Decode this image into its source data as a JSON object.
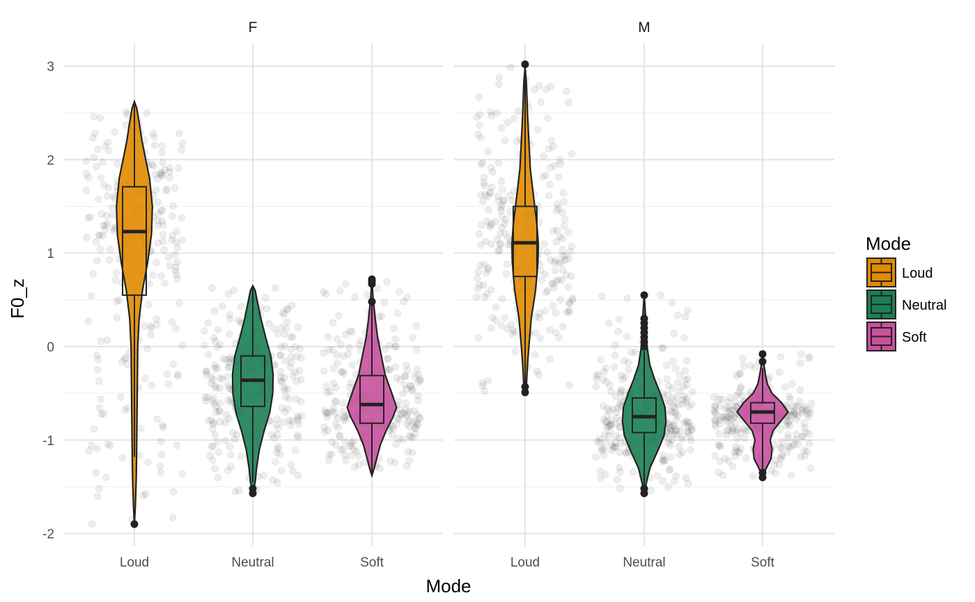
{
  "chart_data": {
    "type": "violin",
    "facets": [
      "F",
      "M"
    ],
    "categories": [
      "Loud",
      "Neutral",
      "Soft"
    ],
    "xlabel": "Mode",
    "ylabel": "F0_z",
    "ylim": [
      -2.2,
      3.25
    ],
    "y_ticks": [
      -2,
      -1,
      0,
      1,
      2,
      3
    ],
    "y_tick_labels": [
      "-2",
      "-1",
      "0",
      "1",
      "2",
      "3"
    ],
    "grid": true,
    "legend": {
      "title": "Mode",
      "position": "right",
      "items": [
        {
          "label": "Loud",
          "color": "#E08B00"
        },
        {
          "label": "Neutral",
          "color": "#1B7F55"
        },
        {
          "label": "Soft",
          "color": "#C8519E"
        }
      ]
    },
    "panels": [
      {
        "facet": "F",
        "groups": [
          {
            "category": "Loud",
            "color": "#E08B00",
            "min": -1.9,
            "max": 2.62,
            "q1": 0.55,
            "median": 1.23,
            "q3": 1.71,
            "whisker_low": -1.18,
            "whisker_high": 2.62,
            "outliers": [
              -1.9
            ],
            "density": [
              [
                -1.9,
                0.0
              ],
              [
                -1.7,
                0.02
              ],
              [
                -1.4,
                0.04
              ],
              [
                -1.0,
                0.05
              ],
              [
                -0.5,
                0.06
              ],
              [
                0.0,
                0.07
              ],
              [
                0.3,
                0.1
              ],
              [
                0.6,
                0.17
              ],
              [
                0.9,
                0.28
              ],
              [
                1.2,
                0.36
              ],
              [
                1.5,
                0.38
              ],
              [
                1.8,
                0.32
              ],
              [
                2.0,
                0.24
              ],
              [
                2.2,
                0.16
              ],
              [
                2.4,
                0.1
              ],
              [
                2.55,
                0.05
              ],
              [
                2.62,
                0.0
              ]
            ]
          },
          {
            "category": "Neutral",
            "color": "#1B7F55",
            "min": -1.57,
            "max": 0.65,
            "q1": -0.64,
            "median": -0.36,
            "q3": -0.1,
            "whisker_low": -1.45,
            "whisker_high": 0.65,
            "outliers": [
              -1.57,
              -1.52
            ],
            "density": [
              [
                -1.57,
                0.0
              ],
              [
                -1.45,
                0.05
              ],
              [
                -1.3,
                0.08
              ],
              [
                -1.1,
                0.14
              ],
              [
                -0.9,
                0.24
              ],
              [
                -0.7,
                0.36
              ],
              [
                -0.5,
                0.42
              ],
              [
                -0.3,
                0.43
              ],
              [
                -0.1,
                0.38
              ],
              [
                0.1,
                0.27
              ],
              [
                0.3,
                0.17
              ],
              [
                0.5,
                0.09
              ],
              [
                0.6,
                0.05
              ],
              [
                0.65,
                0.0
              ]
            ]
          },
          {
            "category": "Soft",
            "color": "#C8519E",
            "min": -1.38,
            "max": 0.73,
            "q1": -0.82,
            "median": -0.62,
            "q3": -0.31,
            "whisker_low": -1.38,
            "whisker_high": 0.45,
            "outliers": [
              0.48,
              0.67,
              0.7,
              0.72
            ],
            "density": [
              [
                -1.38,
                0.0
              ],
              [
                -1.3,
                0.05
              ],
              [
                -1.2,
                0.1
              ],
              [
                -1.05,
                0.18
              ],
              [
                -0.9,
                0.3
              ],
              [
                -0.75,
                0.45
              ],
              [
                -0.65,
                0.52
              ],
              [
                -0.5,
                0.42
              ],
              [
                -0.3,
                0.28
              ],
              [
                -0.1,
                0.2
              ],
              [
                0.1,
                0.12
              ],
              [
                0.3,
                0.07
              ],
              [
                0.45,
                0.04
              ],
              [
                0.55,
                0.02
              ],
              [
                0.73,
                0.0
              ]
            ]
          }
        ]
      },
      {
        "facet": "M",
        "groups": [
          {
            "category": "Loud",
            "color": "#E08B00",
            "min": -0.49,
            "max": 3.02,
            "q1": 0.75,
            "median": 1.11,
            "q3": 1.5,
            "whisker_low": -0.4,
            "whisker_high": 2.9,
            "outliers": [
              -0.49,
              -0.43,
              3.02
            ],
            "density": [
              [
                -0.49,
                0.0
              ],
              [
                -0.4,
                0.03
              ],
              [
                -0.2,
                0.05
              ],
              [
                0.0,
                0.08
              ],
              [
                0.3,
                0.13
              ],
              [
                0.6,
                0.22
              ],
              [
                0.9,
                0.27
              ],
              [
                1.1,
                0.28
              ],
              [
                1.3,
                0.25
              ],
              [
                1.6,
                0.18
              ],
              [
                1.9,
                0.11
              ],
              [
                2.2,
                0.08
              ],
              [
                2.5,
                0.05
              ],
              [
                2.8,
                0.03
              ],
              [
                3.0,
                0.0
              ]
            ]
          },
          {
            "category": "Neutral",
            "color": "#1B7F55",
            "min": -1.57,
            "max": 0.56,
            "q1": -0.92,
            "median": -0.75,
            "q3": -0.55,
            "whisker_low": -1.5,
            "whisker_high": -0.05,
            "outliers": [
              -1.57,
              -1.52,
              0.0,
              0.05,
              0.1,
              0.15,
              0.2,
              0.25,
              0.3,
              0.55
            ],
            "density": [
              [
                -1.57,
                0.0
              ],
              [
                -1.45,
                0.05
              ],
              [
                -1.3,
                0.12
              ],
              [
                -1.1,
                0.3
              ],
              [
                -0.95,
                0.42
              ],
              [
                -0.8,
                0.46
              ],
              [
                -0.65,
                0.44
              ],
              [
                -0.5,
                0.34
              ],
              [
                -0.35,
                0.22
              ],
              [
                -0.2,
                0.12
              ],
              [
                0.0,
                0.06
              ],
              [
                0.2,
                0.04
              ],
              [
                0.4,
                0.02
              ],
              [
                0.56,
                0.0
              ]
            ]
          },
          {
            "category": "Soft",
            "color": "#C8519E",
            "min": -1.4,
            "max": -0.08,
            "q1": -0.82,
            "median": -0.7,
            "q3": -0.6,
            "whisker_low": -1.33,
            "whisker_high": -0.23,
            "outliers": [
              -1.4,
              -1.35,
              -0.16,
              -0.08
            ],
            "density": [
              [
                -1.4,
                0.0
              ],
              [
                -1.3,
                0.08
              ],
              [
                -1.2,
                0.18
              ],
              [
                -1.1,
                0.2
              ],
              [
                -1.0,
                0.16
              ],
              [
                -0.9,
                0.22
              ],
              [
                -0.8,
                0.38
              ],
              [
                -0.7,
                0.54
              ],
              [
                -0.6,
                0.4
              ],
              [
                -0.5,
                0.2
              ],
              [
                -0.4,
                0.1
              ],
              [
                -0.3,
                0.06
              ],
              [
                -0.2,
                0.03
              ],
              [
                -0.08,
                0.0
              ]
            ]
          }
        ]
      }
    ]
  }
}
